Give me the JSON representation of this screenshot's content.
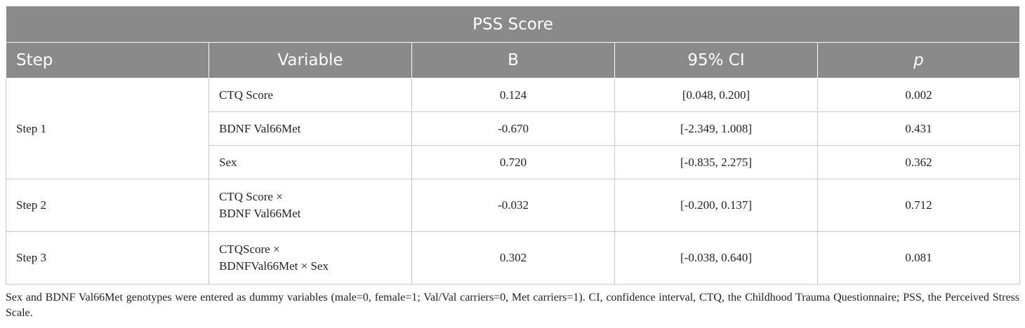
{
  "table": {
    "title": "PSS Score",
    "headers": {
      "step": "Step",
      "variable": "Variable",
      "b": "B",
      "ci": "95% CI",
      "p": "p"
    },
    "groups": [
      {
        "step": "Step 1",
        "rows": [
          {
            "variable_lines": [
              "CTQ Score"
            ],
            "b": "0.124",
            "ci": "[0.048, 0.200]",
            "p": "0.002"
          },
          {
            "variable_lines": [
              "BDNF Val66Met"
            ],
            "b": "-0.670",
            "ci": "[-2.349, 1.008]",
            "p": "0.431"
          },
          {
            "variable_lines": [
              "Sex"
            ],
            "b": "0.720",
            "ci": "[-0.835, 2.275]",
            "p": "0.362"
          }
        ]
      },
      {
        "step": "Step 2",
        "rows": [
          {
            "variable_lines": [
              "CTQ Score ×",
              "BDNF Val66Met"
            ],
            "b": "-0.032",
            "ci": "[-0.200, 0.137]",
            "p": "0.712"
          }
        ]
      },
      {
        "step": "Step 3",
        "rows": [
          {
            "variable_lines": [
              "CTQScore ×",
              "BDNFVal66Met × Sex"
            ],
            "b": "0.302",
            "ci": "[-0.038, 0.640]",
            "p": "0.081"
          }
        ]
      }
    ]
  },
  "footnote": "Sex and BDNF Val66Met genotypes were entered as dummy variables (male=0, female=1; Val/Val carriers=0, Met carriers=1). CI, confidence interval, CTQ, the Childhood Trauma Questionnaire; PSS, the Perceived Stress Scale.",
  "colors": {
    "header_bg": "#8a8a8a",
    "header_text": "#ffffff",
    "grid": "#c8c8c8",
    "body_text": "#222222"
  }
}
